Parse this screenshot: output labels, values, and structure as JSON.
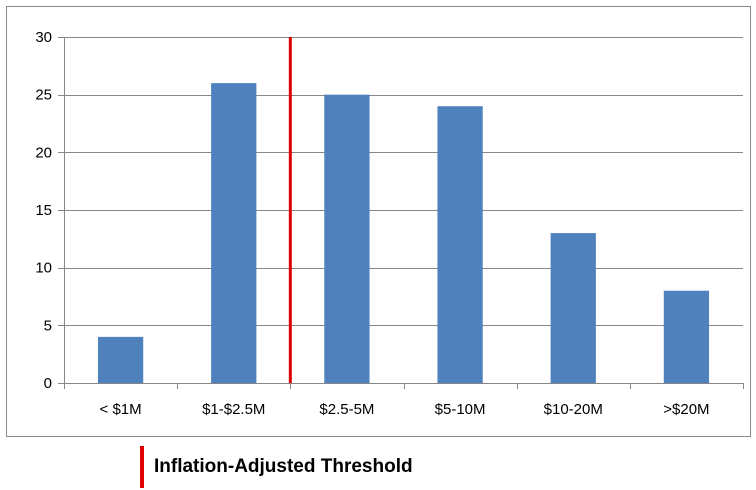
{
  "chart_data": {
    "type": "bar",
    "categories": [
      "< $1M",
      "$1-$2.5M",
      "$2.5-5M",
      "$5-10M",
      "$10-20M",
      ">$20M"
    ],
    "values": [
      4,
      26,
      25,
      24,
      13,
      8
    ],
    "ylim": [
      0,
      30
    ],
    "yticks": [
      0,
      5,
      10,
      15,
      20,
      25,
      30
    ],
    "grid": true,
    "bar_color": "#4f81bd",
    "threshold": {
      "label": "Inflation-Adjusted Threshold",
      "color": "#e00000",
      "x_position": "between $1-$2.5M and $2.5-5M"
    },
    "legend_placement": "bottom-center"
  }
}
